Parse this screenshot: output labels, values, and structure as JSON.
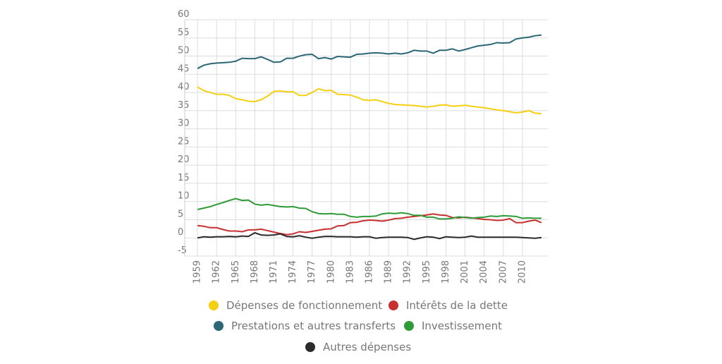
{
  "chart_data": {
    "type": "line",
    "x": [
      1959,
      1960,
      1961,
      1962,
      1963,
      1964,
      1965,
      1966,
      1967,
      1968,
      1969,
      1970,
      1971,
      1972,
      1973,
      1974,
      1975,
      1976,
      1977,
      1978,
      1979,
      1980,
      1981,
      1982,
      1983,
      1984,
      1985,
      1986,
      1987,
      1988,
      1989,
      1990,
      1991,
      1992,
      1993,
      1994,
      1995,
      1996,
      1997,
      1998,
      1999,
      2000,
      2001,
      2002,
      2003,
      2004,
      2005,
      2006,
      2007,
      2008,
      2009,
      2010,
      2011,
      2012,
      2013
    ],
    "series": [
      {
        "name": "Dépenses de fonctionnement",
        "color": "#f5cf12",
        "values": [
          41.5,
          40.5,
          40,
          39.5,
          39.5,
          39.2,
          38.3,
          38,
          37.6,
          37.5,
          38,
          39,
          40.3,
          40.4,
          40.2,
          40.2,
          39.2,
          39.2,
          40,
          41,
          40.5,
          40.6,
          39.5,
          39.4,
          39.3,
          38.7,
          38,
          37.8,
          38,
          37.5,
          37,
          36.7,
          36.6,
          36.5,
          36.4,
          36.2,
          36,
          36.2,
          36.5,
          36.6,
          36.2,
          36.3,
          36.5,
          36.2,
          36,
          35.8,
          35.5,
          35.2,
          35,
          34.7,
          34.4,
          34.6,
          35,
          34.3,
          34.2
        ]
      },
      {
        "name": "Intérêts de la dette",
        "color": "#c8302f",
        "values": [
          3.4,
          3.2,
          2.8,
          2.8,
          2.3,
          1.9,
          1.9,
          1.7,
          2.2,
          2.2,
          2.4,
          2,
          1.6,
          1.2,
          0.9,
          1.1,
          1.7,
          1.5,
          1.8,
          2.1,
          2.4,
          2.5,
          3.3,
          3.4,
          4.2,
          4.3,
          4.7,
          4.9,
          4.8,
          4.6,
          4.9,
          5.3,
          5.4,
          5.7,
          5.9,
          6.1,
          6.3,
          6.6,
          6.3,
          6.2,
          5.6,
          5.5,
          5.7,
          5.5,
          5.3,
          5.1,
          5,
          4.8,
          4.9,
          5.3,
          4.2,
          4.2,
          4.6,
          4.9,
          4.2
        ]
      },
      {
        "name": "Prestations et autres transferts",
        "color": "#2b6777",
        "values": [
          46.6,
          47.5,
          47.9,
          48.1,
          48.2,
          48.3,
          48.6,
          49.4,
          49.3,
          49.3,
          49.8,
          49.1,
          48.3,
          48.4,
          49.4,
          49.4,
          50,
          50.4,
          50.5,
          49.3,
          49.6,
          49.2,
          49.9,
          49.8,
          49.7,
          50.5,
          50.6,
          50.8,
          50.9,
          50.8,
          50.6,
          50.8,
          50.6,
          50.9,
          51.6,
          51.4,
          51.4,
          50.8,
          51.6,
          51.6,
          52,
          51.4,
          51.8,
          52.3,
          52.8,
          53,
          53.2,
          53.7,
          53.6,
          53.7,
          54.7,
          55,
          55.2,
          55.6,
          55.8
        ]
      },
      {
        "name": "Investissement",
        "color": "#2e9a38",
        "values": [
          7.8,
          8.2,
          8.6,
          9.2,
          9.7,
          10.3,
          10.8,
          10.3,
          10.4,
          9.3,
          9,
          9.2,
          8.9,
          8.6,
          8.5,
          8.6,
          8.2,
          8.1,
          7.2,
          6.7,
          6.6,
          6.7,
          6.5,
          6.5,
          5.9,
          5.7,
          5.9,
          5.9,
          6,
          6.6,
          6.8,
          6.7,
          6.9,
          6.7,
          6.2,
          6.2,
          5.7,
          5.7,
          5.2,
          5.2,
          5.4,
          5.8,
          5.6,
          5.4,
          5.6,
          5.7,
          6,
          5.9,
          6.1,
          6,
          5.9,
          5.4,
          5.5,
          5.4,
          5.4
        ]
      },
      {
        "name": "Autres dépenses",
        "color": "#2b2b2b",
        "values": [
          0,
          0.3,
          0.2,
          0.3,
          0.3,
          0.4,
          0.3,
          0.5,
          0.4,
          1.4,
          0.8,
          0.7,
          0.8,
          1.1,
          0.4,
          0.3,
          0.6,
          0.2,
          -0.1,
          0.2,
          0.4,
          0.4,
          0.3,
          0.3,
          0.3,
          0.2,
          0.3,
          0.3,
          -0.1,
          0.1,
          0.2,
          0.2,
          0.2,
          0.1,
          -0.4,
          0,
          0.3,
          0.2,
          -0.2,
          0.3,
          0.2,
          0.1,
          0.2,
          0.5,
          0.2,
          0.2,
          0.2,
          0.2,
          0.2,
          0.2,
          0.2,
          0.1,
          0,
          -0.1,
          0.1
        ]
      }
    ],
    "xlim": [
      1957,
      2014
    ],
    "xticks": [
      1959,
      1962,
      1965,
      1968,
      1971,
      1974,
      1977,
      1980,
      1983,
      1986,
      1989,
      1992,
      1995,
      1998,
      2001,
      2004,
      2007,
      2010
    ],
    "ylim": [
      -5,
      60
    ],
    "yticks": [
      -5,
      0,
      5,
      10,
      15,
      20,
      25,
      30,
      35,
      40,
      45,
      50,
      55,
      60
    ],
    "grid": true
  }
}
